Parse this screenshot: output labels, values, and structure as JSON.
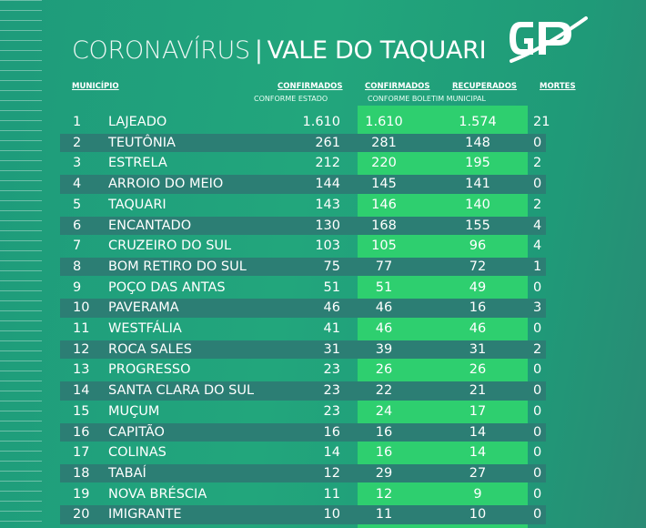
{
  "header": {
    "title_light": "CORONAVÍRUS",
    "title_sep": "|",
    "title_bold": "VALE DO TAQUARI"
  },
  "logo": {
    "text": "GP"
  },
  "columns": {
    "municipio": "MUNICÍPIO",
    "confirmados_estado": "CONFIRMADOS",
    "confirmados_estado_sub": "CONFORME ESTADO",
    "confirmados_boletim": "CONFIRMADOS",
    "recuperados": "RECUPERADOS",
    "boletim_sub": "CONFORME BOLETIM MUNICIPAL",
    "mortes": "MORTES"
  },
  "colors": {
    "background": "#1f9f7a",
    "dark_row": "#2c7e74",
    "green_strip": "#2ecf6f"
  },
  "chart_data": {
    "type": "table",
    "title": "CORONAVÍRUS | VALE DO TAQUARI",
    "rows": [
      {
        "n": "1",
        "municipio": "LAJEADO",
        "conf_estado": "1.610",
        "conf_boletim": "1.610",
        "recuperados": "1.574",
        "mortes": "21"
      },
      {
        "n": "2",
        "municipio": "TEUTÔNIA",
        "conf_estado": "261",
        "conf_boletim": "281",
        "recuperados": "148",
        "mortes": "0"
      },
      {
        "n": "3",
        "municipio": "ESTRELA",
        "conf_estado": "212",
        "conf_boletim": "220",
        "recuperados": "195",
        "mortes": "2"
      },
      {
        "n": "4",
        "municipio": "ARROIO DO MEIO",
        "conf_estado": "144",
        "conf_boletim": "145",
        "recuperados": "141",
        "mortes": "0"
      },
      {
        "n": "5",
        "municipio": "TAQUARI",
        "conf_estado": "143",
        "conf_boletim": "146",
        "recuperados": "140",
        "mortes": "2"
      },
      {
        "n": "6",
        "municipio": "ENCANTADO",
        "conf_estado": "130",
        "conf_boletim": "168",
        "recuperados": "155",
        "mortes": "4"
      },
      {
        "n": "7",
        "municipio": "CRUZEIRO DO SUL",
        "conf_estado": "103",
        "conf_boletim": "105",
        "recuperados": "96",
        "mortes": "4"
      },
      {
        "n": "8",
        "municipio": "BOM RETIRO DO SUL",
        "conf_estado": "75",
        "conf_boletim": "77",
        "recuperados": "72",
        "mortes": "1"
      },
      {
        "n": "9",
        "municipio": "POÇO DAS ANTAS",
        "conf_estado": "51",
        "conf_boletim": "51",
        "recuperados": "49",
        "mortes": "0"
      },
      {
        "n": "10",
        "municipio": "PAVERAMA",
        "conf_estado": "46",
        "conf_boletim": "46",
        "recuperados": "16",
        "mortes": "3"
      },
      {
        "n": "11",
        "municipio": "WESTFÁLIA",
        "conf_estado": "41",
        "conf_boletim": "46",
        "recuperados": "46",
        "mortes": "0"
      },
      {
        "n": "12",
        "municipio": "ROCA SALES",
        "conf_estado": "31",
        "conf_boletim": "39",
        "recuperados": "31",
        "mortes": "2"
      },
      {
        "n": "13",
        "municipio": "PROGRESSO",
        "conf_estado": "23",
        "conf_boletim": "26",
        "recuperados": "26",
        "mortes": "0"
      },
      {
        "n": "14",
        "municipio": "SANTA CLARA DO SUL",
        "conf_estado": "23",
        "conf_boletim": "22",
        "recuperados": "21",
        "mortes": "0"
      },
      {
        "n": "15",
        "municipio": "MUÇUM",
        "conf_estado": "23",
        "conf_boletim": "24",
        "recuperados": "17",
        "mortes": "0"
      },
      {
        "n": "16",
        "municipio": "CAPITÃO",
        "conf_estado": "16",
        "conf_boletim": "16",
        "recuperados": "14",
        "mortes": "0"
      },
      {
        "n": "17",
        "municipio": "COLINAS",
        "conf_estado": "14",
        "conf_boletim": "16",
        "recuperados": "14",
        "mortes": "0"
      },
      {
        "n": "18",
        "municipio": "TABAÍ",
        "conf_estado": "12",
        "conf_boletim": "29",
        "recuperados": "27",
        "mortes": "0"
      },
      {
        "n": "19",
        "municipio": "NOVA BRÉSCIA",
        "conf_estado": "11",
        "conf_boletim": "12",
        "recuperados": "9",
        "mortes": "0"
      },
      {
        "n": "20",
        "municipio": "IMIGRANTE",
        "conf_estado": "10",
        "conf_boletim": "11",
        "recuperados": "10",
        "mortes": "0"
      }
    ]
  }
}
